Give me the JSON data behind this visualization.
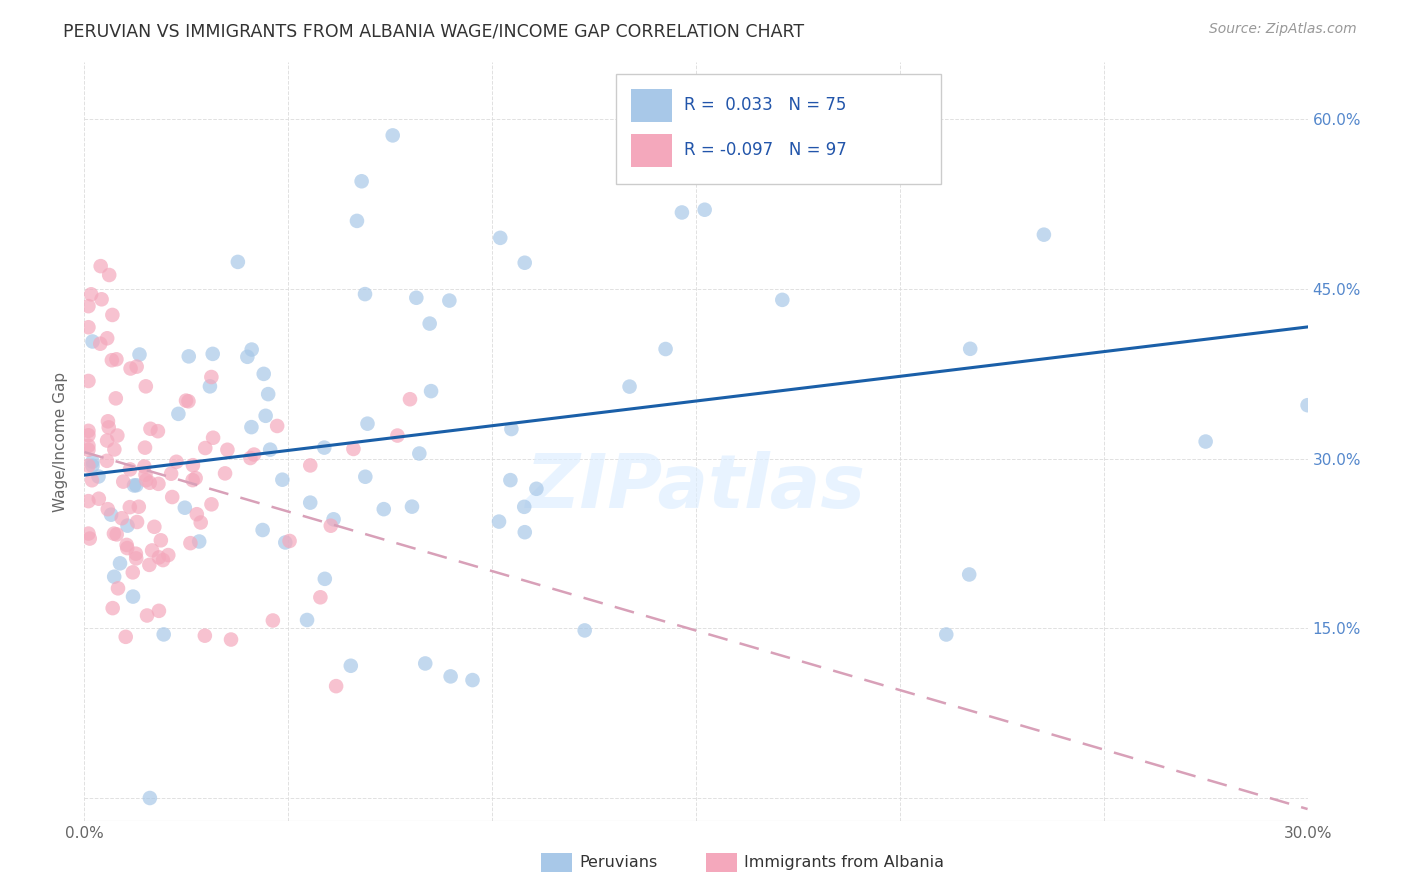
{
  "title": "PERUVIAN VS IMMIGRANTS FROM ALBANIA WAGE/INCOME GAP CORRELATION CHART",
  "source": "Source: ZipAtlas.com",
  "ylabel": "Wage/Income Gap",
  "xlim": [
    0.0,
    0.3
  ],
  "ylim": [
    -0.02,
    0.65
  ],
  "legend_blue_label": "Peruvians",
  "legend_pink_label": "Immigrants from Albania",
  "R_blue": 0.033,
  "N_blue": 75,
  "R_pink": -0.097,
  "N_pink": 97,
  "blue_color": "#a8c8e8",
  "pink_color": "#f4a8bc",
  "trendline_blue_color": "#1a5fa8",
  "trendline_pink_color": "#d8a0b8",
  "yticks": [
    0.0,
    0.15,
    0.3,
    0.45,
    0.6
  ],
  "ytick_labels": [
    "",
    "15.0%",
    "30.0%",
    "45.0%",
    "60.0%"
  ]
}
